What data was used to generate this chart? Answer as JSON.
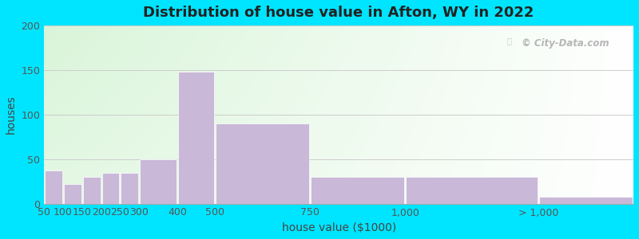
{
  "title": "Distribution of house value in Afton, WY in 2022",
  "xlabel": "house value ($1000)",
  "ylabel": "houses",
  "bar_labels": [
    "50",
    "100",
    "150",
    "200",
    "250",
    "300",
    "400",
    "500",
    "750",
    "1,000",
    "> 1,000"
  ],
  "bar_heights": [
    37,
    22,
    30,
    35,
    35,
    50,
    148,
    90,
    30,
    30,
    8
  ],
  "bar_color": "#c9b8d8",
  "bar_edge_color": "#ffffff",
  "ylim": [
    0,
    200
  ],
  "yticks": [
    0,
    50,
    100,
    150,
    200
  ],
  "outer_bg": "#00e5ff",
  "title_fontsize": 13,
  "axis_label_fontsize": 10,
  "tick_fontsize": 9,
  "watermark": "City-Data.com",
  "bar_lefts": [
    0,
    1,
    2,
    3,
    4,
    5,
    7,
    9,
    14,
    19,
    26
  ],
  "bar_widths": [
    1,
    1,
    1,
    1,
    1,
    2,
    2,
    5,
    5,
    7,
    5
  ],
  "xtick_pos": [
    0,
    1,
    2,
    3,
    4,
    5,
    7,
    9,
    14,
    19,
    26
  ],
  "xlim": [
    0,
    31
  ]
}
